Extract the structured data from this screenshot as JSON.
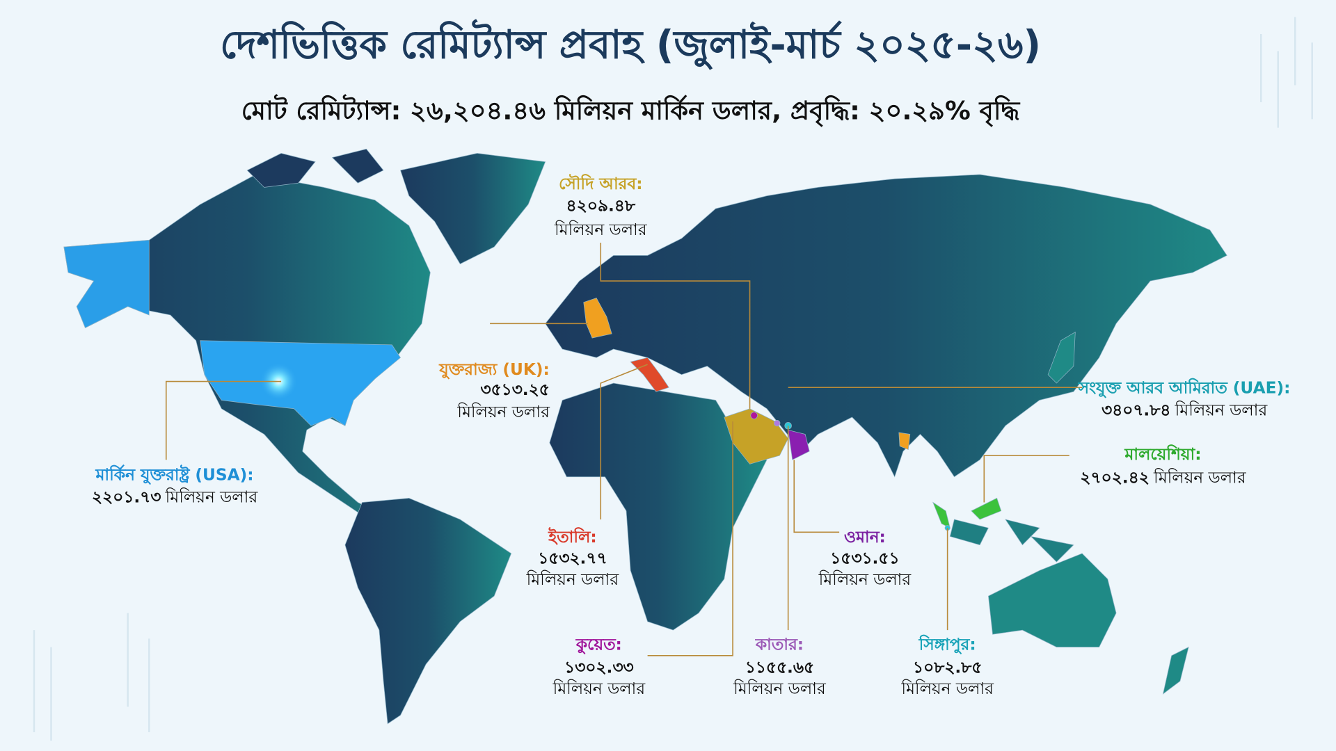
{
  "title": "দেশভিত্তিক রেমিট্যান্স প্রবাহ (জুলাই-মার্চ ২০২৫-২৬)",
  "subtitle": "মোট রেমিট্যান্স: ২৬,২০৪.৪৬ মিলিয়ন মার্কিন ডলার, প্রবৃদ্ধি: ২০.২৯% বৃদ্ধি",
  "callouts": [
    {
      "country": "সৌদি আরব:",
      "value": "৪২০৯.৪৮",
      "unit": "মিলিয়ন ডলার"
    },
    {
      "country": "যুক্তরাজ্য (UK):",
      "value": "৩৫১৩.২৫",
      "unit": "মিলিয়ন ডলার"
    },
    {
      "country": "মার্কিন যুক্তরাষ্ট্র (USA):",
      "value": "২২০১.৭৩",
      "unit": "মিলিয়ন ডলার"
    },
    {
      "country": "সংযুক্ত আরব আমিরাত (UAE):",
      "value": "৩৪০৭.৮৪",
      "unit": "মিলিয়ন ডলার"
    },
    {
      "country": "মালয়েশিয়া:",
      "value": "২৭০২.৪২",
      "unit": "মিলিয়ন ডলার"
    },
    {
      "country": "ইতালি:",
      "value": "১৫৩২.৭৭",
      "unit": "মিলিয়ন ডলার"
    },
    {
      "country": "ওমান:",
      "value": "১৫৩১.৫১",
      "unit": "মিলিয়ন ডলার"
    },
    {
      "country": "কুয়েত:",
      "value": "১৩০২.৩৩",
      "unit": "মিলিয়ন ডলার"
    },
    {
      "country": "কাতার:",
      "value": "১১৫৫.৬৫",
      "unit": "মিলিয়ন ডলার"
    },
    {
      "country": "সিঙ্গাপুর:",
      "value": "১০৮২.৮৫",
      "unit": "মিলিয়ন ডলার"
    }
  ]
}
